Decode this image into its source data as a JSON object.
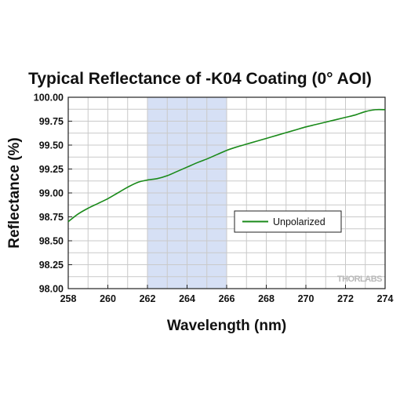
{
  "chart_data": {
    "type": "line",
    "title": "Typical Reflectance of -K04 Coating (0° AOI)",
    "xlabel": "Wavelength (nm)",
    "ylabel": "Reflectance (%)",
    "xlim": [
      258,
      274
    ],
    "ylim": [
      98.0,
      100.0
    ],
    "x_ticks": [
      "258",
      "260",
      "262",
      "264",
      "266",
      "268",
      "270",
      "272",
      "274"
    ],
    "y_ticks": [
      "98.00",
      "98.25",
      "98.50",
      "98.75",
      "99.00",
      "99.25",
      "99.50",
      "99.75",
      "100.00"
    ],
    "grid": true,
    "highlight_band": {
      "x_start": 262,
      "x_end": 266,
      "color": "#d6e0f5"
    },
    "legend": {
      "position": "middle-right",
      "entries": [
        "Unpolarized"
      ]
    },
    "watermark": "THORLABS",
    "series": [
      {
        "name": "Unpolarized",
        "color": "#1a8a1a",
        "x": [
          258.0,
          258.5,
          259.0,
          259.5,
          260.0,
          260.5,
          261.0,
          261.5,
          262.0,
          262.5,
          263.0,
          263.5,
          264.0,
          264.5,
          265.0,
          265.5,
          266.0,
          266.5,
          267.0,
          267.5,
          268.0,
          268.5,
          269.0,
          269.5,
          270.0,
          270.5,
          271.0,
          271.5,
          272.0,
          272.5,
          273.0,
          273.5,
          274.0
        ],
        "values": [
          98.7,
          98.78,
          98.84,
          98.89,
          98.94,
          99.0,
          99.06,
          99.11,
          99.135,
          99.15,
          99.18,
          99.225,
          99.27,
          99.315,
          99.355,
          99.4,
          99.445,
          99.48,
          99.51,
          99.54,
          99.57,
          99.6,
          99.63,
          99.66,
          99.69,
          99.715,
          99.74,
          99.765,
          99.79,
          99.815,
          99.85,
          99.87,
          99.87
        ]
      }
    ]
  }
}
